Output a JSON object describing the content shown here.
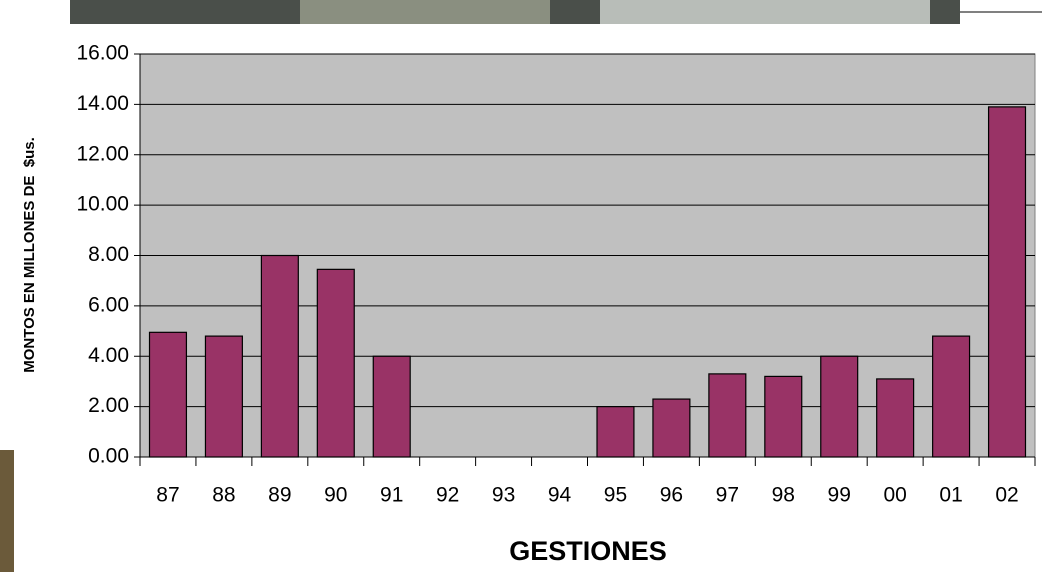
{
  "chart_data": {
    "type": "bar",
    "y_label": "MONTOS EN MILLONES DE  $us.",
    "x_label": "GESTIONES",
    "categories": [
      "87",
      "88",
      "89",
      "90",
      "91",
      "92",
      "93",
      "94",
      "95",
      "96",
      "97",
      "98",
      "99",
      "00",
      "01",
      "02"
    ],
    "values": [
      4.95,
      4.8,
      8.0,
      7.45,
      4.0,
      0,
      0,
      0,
      2.0,
      2.3,
      3.3,
      3.2,
      4.0,
      3.1,
      4.8,
      13.9
    ],
    "color": "#993366",
    "ylim": [
      0,
      16
    ],
    "yticks": [
      {
        "value": 0,
        "label": "0.00"
      },
      {
        "value": 2,
        "label": "2.00"
      },
      {
        "value": 4,
        "label": "4.00"
      },
      {
        "value": 6,
        "label": "6.00"
      },
      {
        "value": 8,
        "label": "8.00"
      },
      {
        "value": 10,
        "label": "10.00"
      },
      {
        "value": 12,
        "label": "12.00"
      },
      {
        "value": 14,
        "label": "14.00"
      },
      {
        "value": 16,
        "label": "16.00"
      }
    ],
    "grid": true
  }
}
